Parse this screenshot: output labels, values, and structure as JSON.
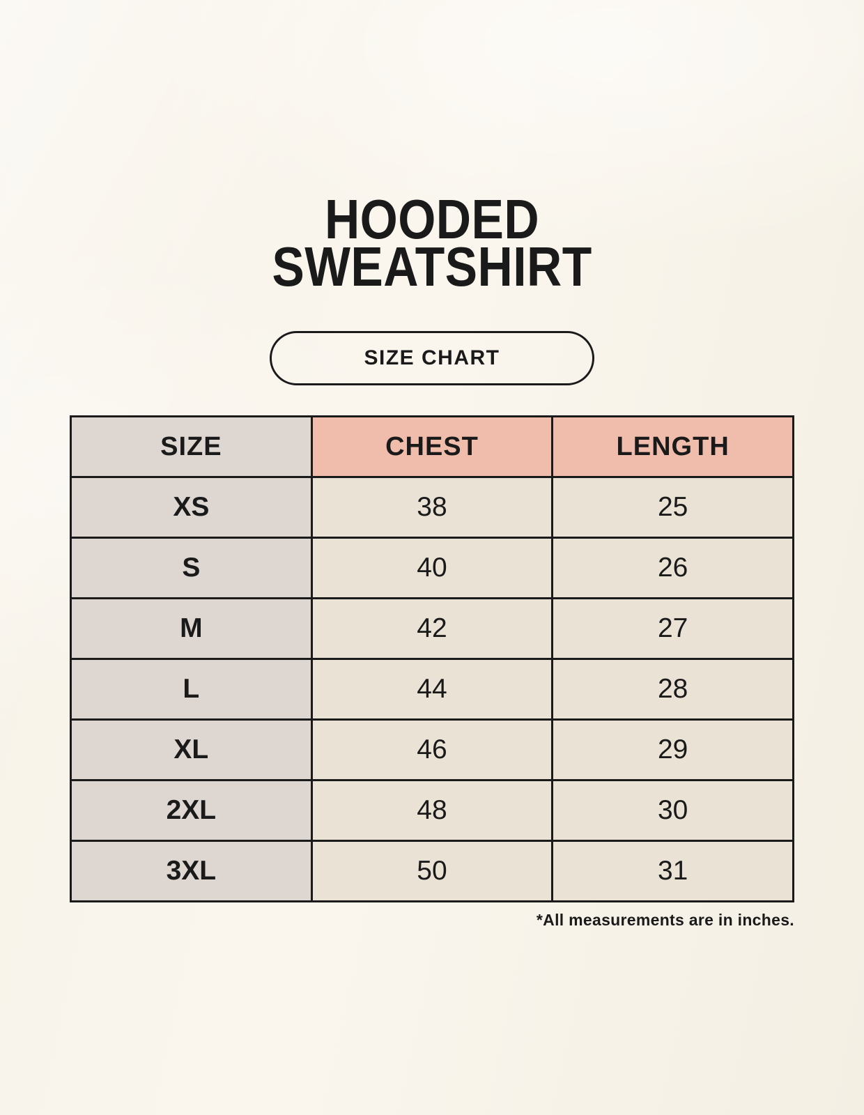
{
  "page": {
    "title": {
      "line1": "HOODED",
      "line2": "SWEATSHIRT"
    },
    "badge_label": "SIZE CHART",
    "footnote": "*All measurements are in inches."
  },
  "colors": {
    "background": "#f8f4ea",
    "header_accent": "#f0bcab",
    "size_column": "#ded7d1",
    "cell": "#e9e2d5",
    "border": "#1a1a1a",
    "text": "#1a1a1a"
  },
  "chart_data": {
    "type": "table",
    "title": "HOODED SWEATSHIRT",
    "subtitle": "SIZE CHART",
    "units": "inches",
    "columns": [
      "SIZE",
      "CHEST",
      "LENGTH"
    ],
    "rows": [
      [
        "XS",
        38,
        25
      ],
      [
        "S",
        40,
        26
      ],
      [
        "M",
        42,
        27
      ],
      [
        "L",
        44,
        28
      ],
      [
        "XL",
        46,
        29
      ],
      [
        "2XL",
        48,
        30
      ],
      [
        "3XL",
        50,
        31
      ]
    ]
  }
}
